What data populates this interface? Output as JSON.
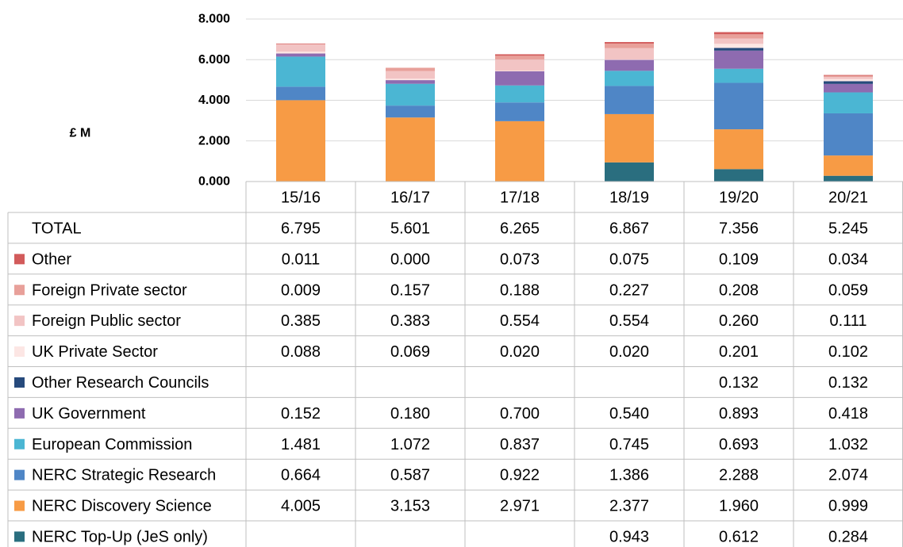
{
  "chart_data": {
    "type": "bar",
    "stacked": true,
    "with_data_table": true,
    "ylabel": "£ M",
    "ylim": [
      0,
      8
    ],
    "yticks": [
      "0.000",
      "2.000",
      "4.000",
      "6.000",
      "8.000"
    ],
    "grid": true,
    "categories": [
      "15/16",
      "16/17",
      "17/18",
      "18/19",
      "19/20",
      "20/21"
    ],
    "total": {
      "label": "TOTAL",
      "values": [
        "6.795",
        "5.601",
        "6.265",
        "6.867",
        "7.356",
        "5.245"
      ]
    },
    "series": [
      {
        "name": "Other",
        "color": "#d25b5b",
        "values": [
          "0.011",
          "0.000",
          "0.073",
          "0.075",
          "0.109",
          "0.034"
        ]
      },
      {
        "name": "Foreign Private sector",
        "color": "#e8a09a",
        "values": [
          "0.009",
          "0.157",
          "0.188",
          "0.227",
          "0.208",
          "0.059"
        ]
      },
      {
        "name": "Foreign Public sector",
        "color": "#f2c4c4",
        "values": [
          "0.385",
          "0.383",
          "0.554",
          "0.554",
          "0.260",
          "0.111"
        ]
      },
      {
        "name": "UK Private Sector",
        "color": "#fce6e4",
        "values": [
          "0.088",
          "0.069",
          "0.020",
          "0.020",
          "0.201",
          "0.102"
        ]
      },
      {
        "name": "Other Research Councils",
        "color": "#264a7c",
        "values": [
          "",
          "",
          "",
          "",
          "0.132",
          "0.132"
        ]
      },
      {
        "name": "UK Government",
        "color": "#8e6bb0",
        "values": [
          "0.152",
          "0.180",
          "0.700",
          "0.540",
          "0.893",
          "0.418"
        ]
      },
      {
        "name": "European Commission",
        "color": "#4bb6d3",
        "values": [
          "1.481",
          "1.072",
          "0.837",
          "0.745",
          "0.693",
          "1.032"
        ]
      },
      {
        "name": "NERC Strategic Research",
        "color": "#4f86c6",
        "values": [
          "0.664",
          "0.587",
          "0.922",
          "1.386",
          "2.288",
          "2.074"
        ]
      },
      {
        "name": "NERC Discovery Science",
        "color": "#f79b45",
        "values": [
          "4.005",
          "3.153",
          "2.971",
          "2.377",
          "1.960",
          "0.999"
        ]
      },
      {
        "name": "NERC Top-Up (JeS only)",
        "color": "#2a6e7f",
        "values": [
          "",
          "",
          "",
          "0.943",
          "0.612",
          "0.284"
        ]
      }
    ]
  }
}
